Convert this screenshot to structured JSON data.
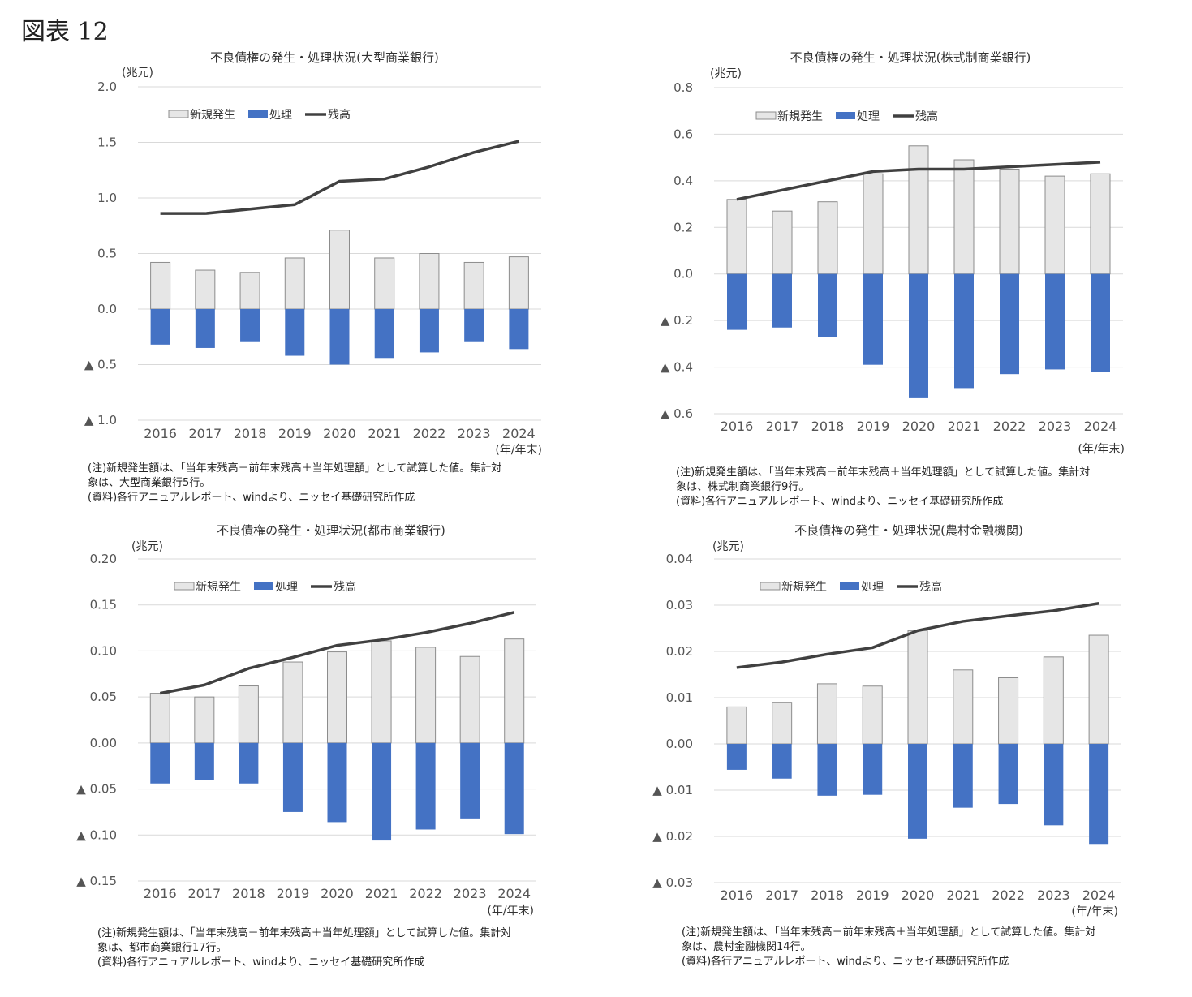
{
  "figure_label": "図表 12",
  "legend": {
    "new": "新規発生",
    "disposal": "処理",
    "balance": "残高"
  },
  "colors": {
    "new": "#e6e6e6",
    "new_stroke": "#8c8c8c",
    "disposal": "#4472c4",
    "balance": "#404040",
    "grid": "#d9d9d9"
  },
  "panels": [
    {
      "unit": "(兆元)",
      "xunit": "(年/年末)",
      "notes": [
        "(注)新規発生額は、「当年末残高－前年末残高＋当年処理額」として試算した値。集計対",
        "象は、大型商業銀行5行。",
        "(資料)各行アニュアルレポート、windより、ニッセイ基礎研究所作成"
      ]
    },
    {
      "unit": "(兆元)",
      "xunit": "(年/年末)",
      "notes": [
        "(注)新規発生額は、「当年末残高－前年末残高＋当年処理額」として試算した値。集計対",
        "象は、株式制商業銀行9行。",
        "(資料)各行アニュアルレポート、windより、ニッセイ基礎研究所作成"
      ]
    },
    {
      "unit": "(兆元)",
      "xunit": "(年/年末)",
      "notes": [
        "(注)新規発生額は、「当年末残高－前年末残高＋当年処理額」として試算した値。集計対",
        "象は、都市商業銀行17行。",
        "(資料)各行アニュアルレポート、windより、ニッセイ基礎研究所作成"
      ]
    },
    {
      "unit": "(兆元)",
      "xunit": "(年/年末)",
      "notes": [
        "(注)新規発生額は、「当年末残高－前年末残高＋当年処理額」として試算した値。集計対",
        "象は、農村金融機関14行。",
        "(資料)各行アニュアルレポート、windより、ニッセイ基礎研究所作成"
      ]
    }
  ],
  "chart_data": [
    {
      "type": "bar",
      "title": "不良債権の発生・処理状況(大型商業銀行)",
      "categories": [
        "2016",
        "2017",
        "2018",
        "2019",
        "2020",
        "2021",
        "2022",
        "2023",
        "2024"
      ],
      "ylim": [
        -1.0,
        2.0
      ],
      "yticks": [
        2.0,
        1.5,
        1.0,
        0.5,
        0.0,
        -0.5,
        -1.0
      ],
      "ytick_labels": [
        "2.0",
        "1.5",
        "1.0",
        "0.5",
        "0.0",
        "▲ 0.5",
        "▲ 1.0"
      ],
      "series": [
        {
          "name": "新規発生",
          "type": "bar",
          "values": [
            0.42,
            0.35,
            0.33,
            0.46,
            0.71,
            0.46,
            0.5,
            0.42,
            0.47
          ]
        },
        {
          "name": "処理",
          "type": "bar",
          "values": [
            -0.32,
            -0.35,
            -0.29,
            -0.42,
            -0.5,
            -0.44,
            -0.39,
            -0.29,
            -0.36
          ]
        },
        {
          "name": "残高",
          "type": "line",
          "values": [
            0.86,
            0.86,
            0.9,
            0.94,
            1.15,
            1.17,
            1.28,
            1.41,
            1.51
          ]
        }
      ],
      "grid": true,
      "legend_position": "top-left"
    },
    {
      "type": "bar",
      "title": "不良債権の発生・処理状況(株式制商業銀行)",
      "categories": [
        "2016",
        "2017",
        "2018",
        "2019",
        "2020",
        "2021",
        "2022",
        "2023",
        "2024"
      ],
      "ylim": [
        -0.6,
        0.8
      ],
      "yticks": [
        0.8,
        0.6,
        0.4,
        0.2,
        0.0,
        -0.2,
        -0.4,
        -0.6
      ],
      "ytick_labels": [
        "0.8",
        "0.6",
        "0.4",
        "0.2",
        "0.0",
        "▲ 0.2",
        "▲ 0.4",
        "▲ 0.6"
      ],
      "series": [
        {
          "name": "新規発生",
          "type": "bar",
          "values": [
            0.32,
            0.27,
            0.31,
            0.43,
            0.55,
            0.49,
            0.45,
            0.42,
            0.43
          ]
        },
        {
          "name": "処理",
          "type": "bar",
          "values": [
            -0.24,
            -0.23,
            -0.27,
            -0.39,
            -0.53,
            -0.49,
            -0.43,
            -0.41,
            -0.42
          ]
        },
        {
          "name": "残高",
          "type": "line",
          "values": [
            0.32,
            0.36,
            0.4,
            0.44,
            0.45,
            0.45,
            0.46,
            0.47,
            0.48
          ]
        }
      ],
      "grid": true,
      "legend_position": "top-left"
    },
    {
      "type": "bar",
      "title": "不良債権の発生・処理状況(都市商業銀行)",
      "categories": [
        "2016",
        "2017",
        "2018",
        "2019",
        "2020",
        "2021",
        "2022",
        "2023",
        "2024"
      ],
      "ylim": [
        -0.15,
        0.2
      ],
      "yticks": [
        0.2,
        0.15,
        0.1,
        0.05,
        0.0,
        -0.05,
        -0.1,
        -0.15
      ],
      "ytick_labels": [
        "0.20",
        "0.15",
        "0.10",
        "0.05",
        "0.00",
        "▲ 0.05",
        "▲ 0.10",
        "▲ 0.15"
      ],
      "series": [
        {
          "name": "新規発生",
          "type": "bar",
          "values": [
            0.054,
            0.05,
            0.062,
            0.088,
            0.099,
            0.111,
            0.104,
            0.094,
            0.113
          ]
        },
        {
          "name": "処理",
          "type": "bar",
          "values": [
            -0.044,
            -0.04,
            -0.044,
            -0.075,
            -0.086,
            -0.106,
            -0.094,
            -0.082,
            -0.099
          ]
        },
        {
          "name": "残高",
          "type": "line",
          "values": [
            0.054,
            0.063,
            0.081,
            0.093,
            0.106,
            0.112,
            0.12,
            0.13,
            0.142
          ]
        }
      ],
      "grid": true,
      "legend_position": "top-left"
    },
    {
      "type": "bar",
      "title": "不良債権の発生・処理状況(農村金融機関)",
      "categories": [
        "2016",
        "2017",
        "2018",
        "2019",
        "2020",
        "2021",
        "2022",
        "2023",
        "2024"
      ],
      "ylim": [
        -0.03,
        0.04
      ],
      "yticks": [
        0.04,
        0.03,
        0.02,
        0.01,
        0.0,
        -0.01,
        -0.02,
        -0.03
      ],
      "ytick_labels": [
        "0.04",
        "0.03",
        "0.02",
        "0.01",
        "0.00",
        "▲ 0.01",
        "▲ 0.02",
        "▲ 0.03"
      ],
      "series": [
        {
          "name": "新規発生",
          "type": "bar",
          "values": [
            0.008,
            0.009,
            0.013,
            0.0125,
            0.0245,
            0.016,
            0.0143,
            0.0188,
            0.0235
          ]
        },
        {
          "name": "処理",
          "type": "bar",
          "values": [
            -0.0056,
            -0.0075,
            -0.0112,
            -0.011,
            -0.0205,
            -0.0138,
            -0.013,
            -0.0176,
            -0.0218
          ]
        },
        {
          "name": "残高",
          "type": "line",
          "values": [
            0.0165,
            0.0177,
            0.0194,
            0.0208,
            0.0245,
            0.0265,
            0.0277,
            0.0288,
            0.0304
          ]
        }
      ],
      "grid": true,
      "legend_position": "top-left"
    }
  ]
}
